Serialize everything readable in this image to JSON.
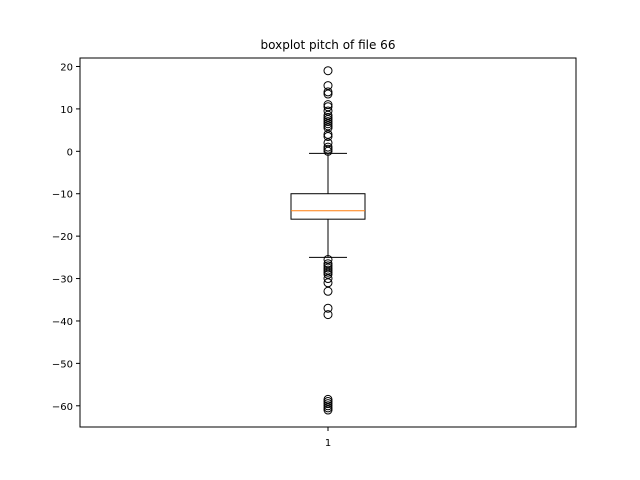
{
  "chart_data": {
    "type": "boxplot",
    "title": "boxplot pitch of file 66",
    "xlabel": "",
    "ylabel": "",
    "categories": [
      "1"
    ],
    "ylim": [
      -65,
      22
    ],
    "yticks": [
      20,
      10,
      0,
      -10,
      -20,
      -30,
      -40,
      -50,
      -60
    ],
    "ytick_labels": [
      "20",
      "10",
      "0",
      "−10",
      "−20",
      "−30",
      "−40",
      "−50",
      "−60"
    ],
    "grid": false,
    "box": {
      "whisker_high": -0.5,
      "q3": -10,
      "median": -14,
      "q1": -16,
      "whisker_low": -25,
      "outliers_high": [
        19,
        15.5,
        14,
        13.5,
        11,
        10.5,
        9.5,
        8.5,
        8,
        7.5,
        7,
        6.5,
        6,
        5.5,
        4,
        3.5,
        2,
        1,
        0.5,
        0
      ],
      "outliers_low": [
        -25.5,
        -26.5,
        -27,
        -27.5,
        -28,
        -28.5,
        -29,
        -30,
        -31,
        -33,
        -37,
        -38.5,
        -58.5,
        -59,
        -59.5,
        -60,
        -60.5,
        -61
      ]
    },
    "colors": {
      "median": "#ff7f0e",
      "box": "#000000",
      "outlier": "#000000"
    }
  }
}
